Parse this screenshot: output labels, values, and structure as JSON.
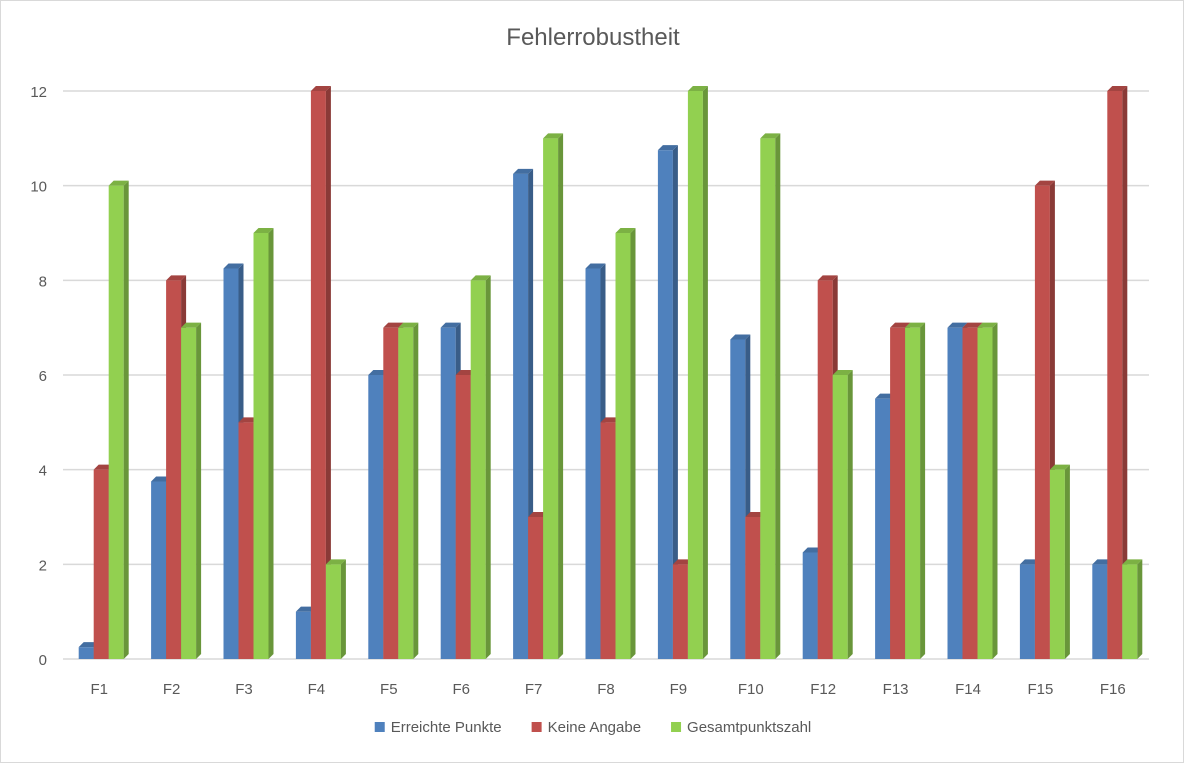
{
  "chart_data": {
    "type": "bar",
    "title": "Fehlerrobustheit",
    "xlabel": "",
    "ylabel": "",
    "ylim": [
      0,
      12
    ],
    "yticks": [
      0,
      2,
      4,
      6,
      8,
      10,
      12
    ],
    "grid": true,
    "legend_position": "bottom",
    "categories": [
      "F1",
      "F2",
      "F3",
      "F4",
      "F5",
      "F6",
      "F7",
      "F8",
      "F9",
      "F10",
      "F12",
      "F13",
      "F14",
      "F15",
      "F16"
    ],
    "series": [
      {
        "name": "Erreichte Punkte",
        "color": "#4f81bd",
        "values": [
          0.25,
          3.75,
          8.25,
          1,
          6,
          7,
          10.25,
          8.25,
          10.75,
          6.75,
          2.25,
          5.5,
          7,
          2,
          2
        ]
      },
      {
        "name": "Keine Angabe",
        "color": "#c0504d",
        "values": [
          4,
          8,
          5,
          12,
          7,
          6,
          3,
          5,
          2,
          3,
          8,
          7,
          7,
          10,
          12
        ]
      },
      {
        "name": "Gesamtpunktszahl",
        "color": "#92d050",
        "values": [
          10,
          7,
          9,
          2,
          7,
          8,
          11,
          9,
          12,
          11,
          6,
          7,
          7,
          4,
          2
        ]
      }
    ]
  }
}
